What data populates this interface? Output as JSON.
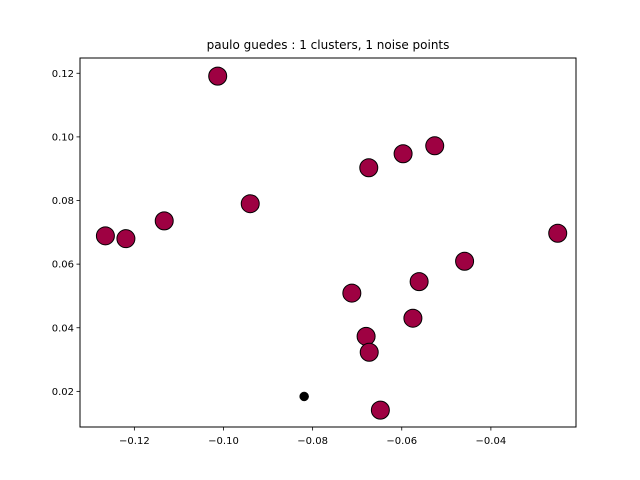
{
  "chart_data": {
    "type": "scatter",
    "title": "paulo guedes : 1 clusters, 1 noise points",
    "xlabel": "",
    "ylabel": "",
    "xlim": [
      -0.1322,
      -0.0209
    ],
    "ylim": [
      0.0088,
      0.1248
    ],
    "x_ticks": [
      -0.12,
      -0.1,
      -0.08,
      -0.06,
      -0.04
    ],
    "x_tick_labels": [
      "−0.12",
      "−0.10",
      "−0.08",
      "−0.06",
      "−0.04"
    ],
    "y_ticks": [
      0.02,
      0.04,
      0.06,
      0.08,
      0.1,
      0.12
    ],
    "y_tick_labels": [
      "0.02",
      "0.04",
      "0.06",
      "0.08",
      "0.10",
      "0.12"
    ],
    "grid": false,
    "series": [
      {
        "color": "#9e0142",
        "edgecolor": "#000000",
        "marker": "large-circle",
        "points": [
          {
            "x": -0.1013,
            "y": 0.1191
          },
          {
            "x": -0.1265,
            "y": 0.0689
          },
          {
            "x": -0.1219,
            "y": 0.068
          },
          {
            "x": -0.1133,
            "y": 0.0736
          },
          {
            "x": -0.094,
            "y": 0.079
          },
          {
            "x": -0.0674,
            "y": 0.0903
          },
          {
            "x": -0.0597,
            "y": 0.0947
          },
          {
            "x": -0.0526,
            "y": 0.0972
          },
          {
            "x": -0.025,
            "y": 0.0697
          },
          {
            "x": -0.0459,
            "y": 0.0609
          },
          {
            "x": -0.0561,
            "y": 0.0545
          },
          {
            "x": -0.0712,
            "y": 0.0509
          },
          {
            "x": -0.0575,
            "y": 0.043
          },
          {
            "x": -0.068,
            "y": 0.0373
          },
          {
            "x": -0.0673,
            "y": 0.0323
          },
          {
            "x": -0.0648,
            "y": 0.0141
          }
        ]
      },
      {
        "color": "#000000",
        "edgecolor": "#000000",
        "marker": "small-circle",
        "points": [
          {
            "x": -0.0819,
            "y": 0.0184
          }
        ]
      }
    ]
  }
}
